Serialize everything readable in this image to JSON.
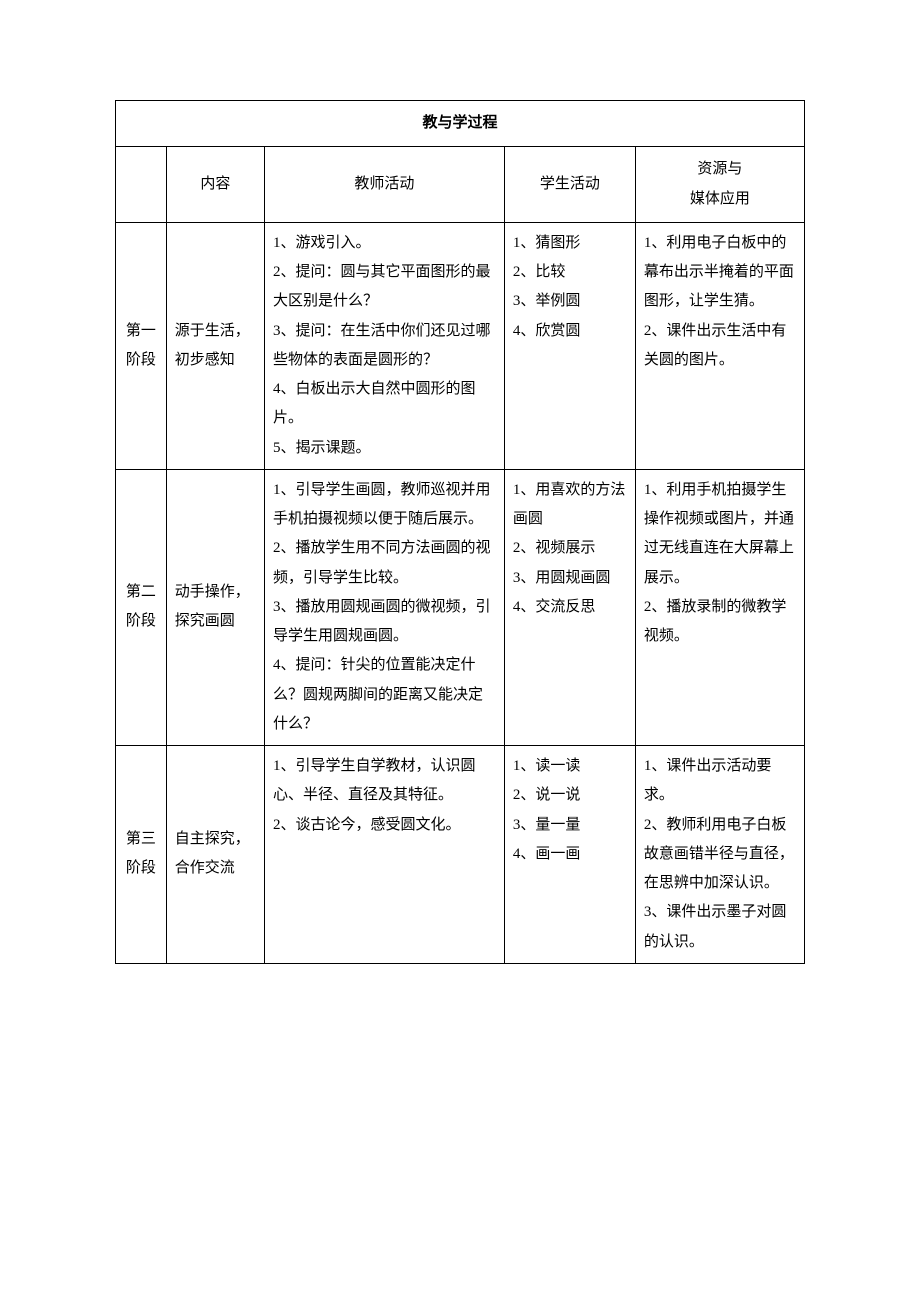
{
  "table": {
    "title": "教与学过程",
    "headers": {
      "stage": "",
      "content": "内容",
      "teacher": "教师活动",
      "student": "学生活动",
      "resource": "资源与\n媒体应用"
    },
    "rows": [
      {
        "stage": "第一阶段",
        "content": "源于生活，初步感知",
        "teacher": "1、游戏引入。\n2、提问：圆与其它平面图形的最大区别是什么？\n3、提问：在生活中你们还见过哪些物体的表面是圆形的？\n4、白板出示大自然中圆形的图片。\n5、揭示课题。",
        "student": "1、猜图形\n2、比较\n3、举例圆\n4、欣赏圆",
        "resource": "1、利用电子白板中的幕布出示半掩着的平面图形，让学生猜。\n2、课件出示生活中有关圆的图片。"
      },
      {
        "stage": "第二阶段",
        "content": "动手操作，探究画圆",
        "teacher": "1、引导学生画圆，教师巡视并用手机拍摄视频以便于随后展示。\n2、播放学生用不同方法画圆的视频，引导学生比较。\n3、播放用圆规画圆的微视频，引导学生用圆规画圆。\n4、提问：针尖的位置能决定什么？圆规两脚间的距离又能决定什么？",
        "student": "1、用喜欢的方法画圆\n2、视频展示\n3、用圆规画圆\n4、交流反思",
        "resource": "1、利用手机拍摄学生操作视频或图片，并通过无线直连在大屏幕上展示。\n2、播放录制的微教学视频。"
      },
      {
        "stage": "第三阶段",
        "content": "自主探究，合作交流",
        "teacher": "1、引导学生自学教材，认识圆心、半径、直径及其特征。\n2、谈古论今，感受圆文化。",
        "student": "1、读一读\n2、说一说\n3、量一量\n4、画一画",
        "resource": "1、课件出示活动要求。\n2、教师利用电子白板故意画错半径与直径，在思辨中加深认识。\n3、课件出示墨子对圆的认识。"
      }
    ]
  }
}
